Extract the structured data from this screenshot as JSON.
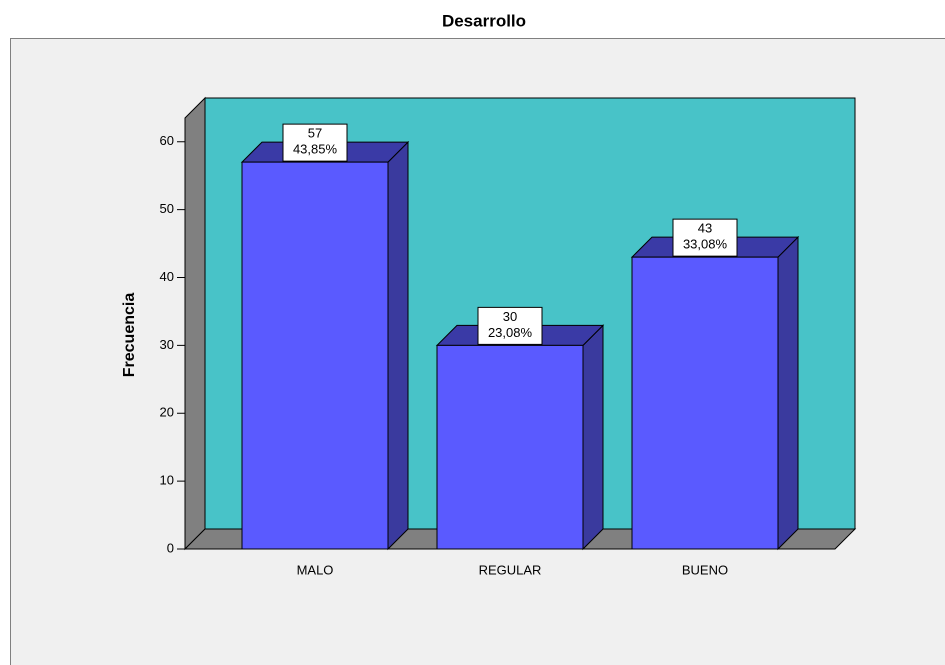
{
  "chart_data": {
    "type": "bar",
    "title": "Desarrollo",
    "y_label": "Frecuencia",
    "categories": [
      "MALO",
      "REGULAR",
      "BUENO"
    ],
    "values": [
      57,
      30,
      43
    ],
    "percent_values": [
      43.85,
      23.08,
      33.08
    ],
    "percent_labels": [
      "43,85%",
      "23,08%",
      "33,08%"
    ],
    "color": "#5a5aff",
    "ylim": [
      0,
      63.5
    ],
    "yticks": [
      0,
      10,
      20,
      30,
      40,
      50,
      60
    ]
  }
}
